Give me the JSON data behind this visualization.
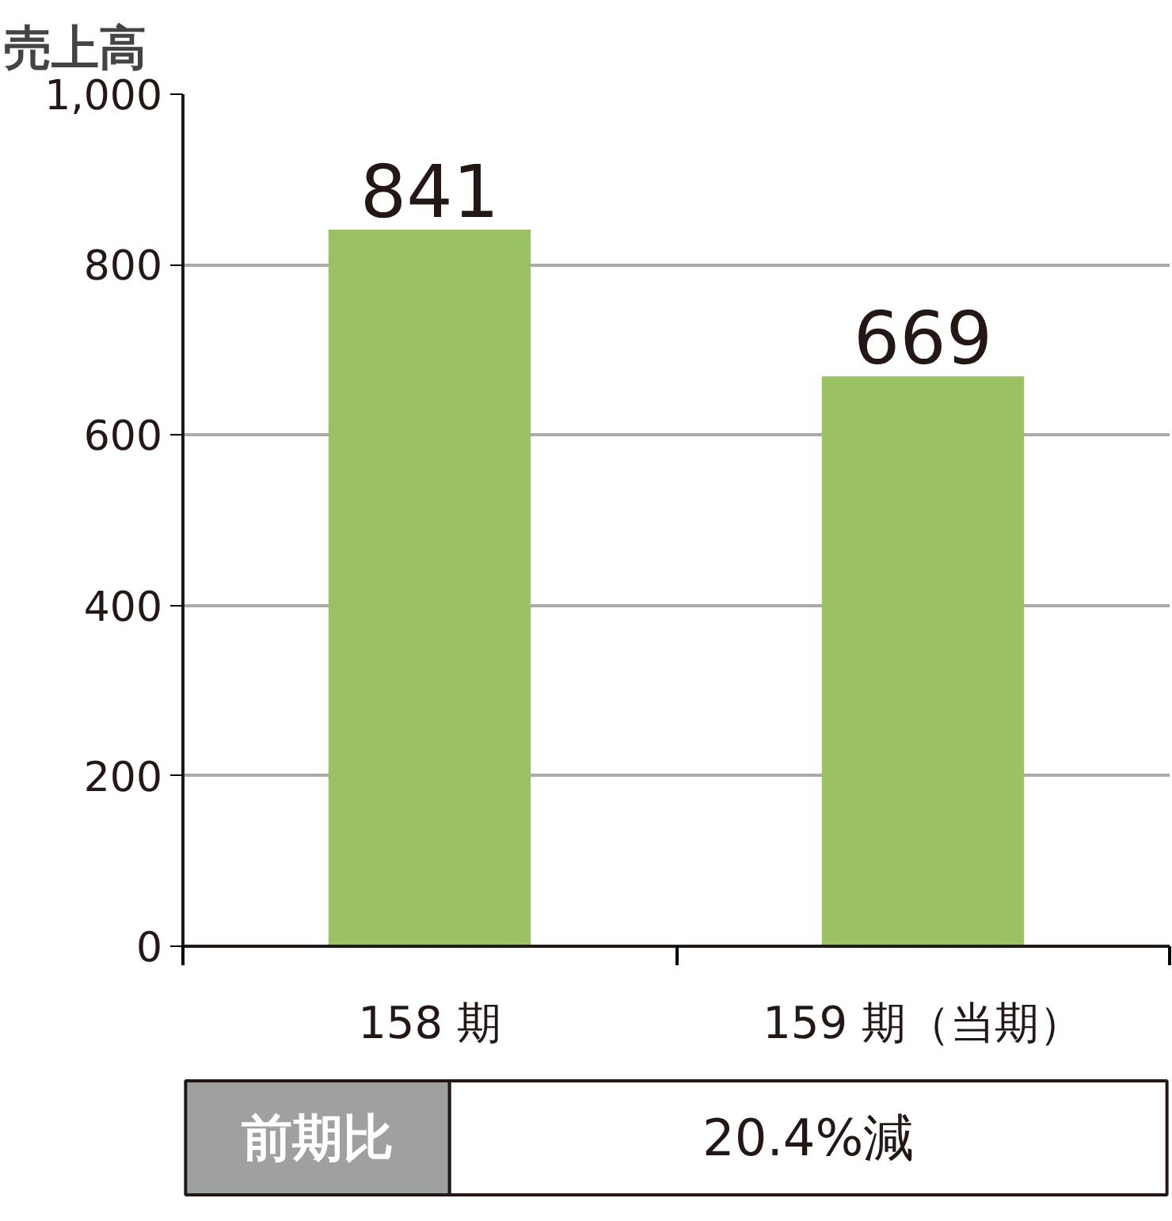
{
  "chart_data": {
    "type": "bar",
    "title": "売上高",
    "categories": [
      "158 期",
      "159 期（当期）"
    ],
    "values": [
      841,
      669
    ],
    "color": "#9ac262",
    "ylim": [
      0,
      1000
    ],
    "yticks": [
      0,
      200,
      400,
      600,
      800,
      {
        "value": 1000,
        "label": "1,000"
      }
    ],
    "grid": "y",
    "data_labels": true,
    "annotations": [
      "前期比",
      "20.4%減"
    ]
  }
}
